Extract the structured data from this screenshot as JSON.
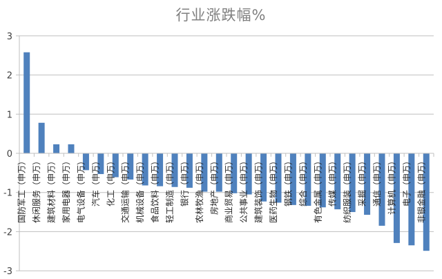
{
  "chart_data": {
    "type": "bar",
    "title": "行业涨跌幅%",
    "xlabel": "",
    "ylabel": "",
    "ylim": [
      -3,
      3
    ],
    "yticks": [
      3,
      2,
      1,
      0,
      -1,
      -2,
      -3
    ],
    "grid": true,
    "legend": null,
    "bar_color": "#4f81bd",
    "categories": [
      "国防军工（申万）",
      "休闲服务（申万）",
      "建筑材料（申万）",
      "家用电器（申万）",
      "电气设备（申万）",
      "汽车（申万）",
      "化工（申万）",
      "交通运输（申万）",
      "机械设备（申万）",
      "食品饮料（申万）",
      "轻工制造（申万）",
      "银行（申万）",
      "农林牧渔（申万）",
      "房地产（申万）",
      "商业贸易（申万）",
      "公共事业（申万）",
      "建筑装饰（申万）",
      "医药生物（申万）",
      "钢铁（申万）",
      "综合（申万）",
      "有色金属（申万）",
      "传媒（申万）",
      "纺织服装（申万）",
      "采掘（申万）",
      "通信（申万）",
      "计算机（申万）",
      "电子（申万）",
      "非银金融（申万）"
    ],
    "values": [
      2.58,
      0.78,
      0.23,
      0.23,
      -0.43,
      -0.53,
      -0.61,
      -0.67,
      -0.82,
      -0.84,
      -0.86,
      -0.88,
      -0.98,
      -0.98,
      -1.02,
      -1.05,
      -1.23,
      -1.26,
      -1.32,
      -1.34,
      -1.38,
      -1.43,
      -1.5,
      -1.57,
      -1.85,
      -2.29,
      -2.35,
      -2.49
    ]
  }
}
